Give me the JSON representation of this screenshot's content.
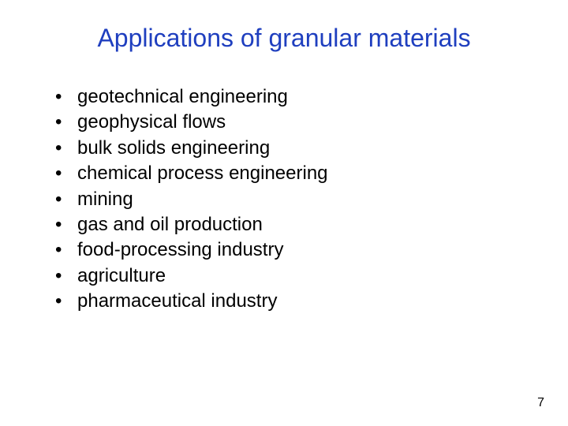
{
  "title": {
    "text": "Applications of granular materials",
    "color": "#1f3fbf",
    "fontsize": 32,
    "fontweight": "normal"
  },
  "bullets": {
    "items": [
      "geotechnical engineering",
      "geophysical flows",
      "bulk solids engineering",
      "chemical process engineering",
      "mining",
      "gas and oil production",
      "food-processing industry",
      "agriculture",
      "pharmaceutical industry"
    ],
    "color": "#000000",
    "fontsize": 24,
    "bullet_char": "•",
    "bullet_color": "#000000"
  },
  "page_number": {
    "text": "7",
    "color": "#000000",
    "fontsize": 16
  },
  "background_color": "#ffffff"
}
